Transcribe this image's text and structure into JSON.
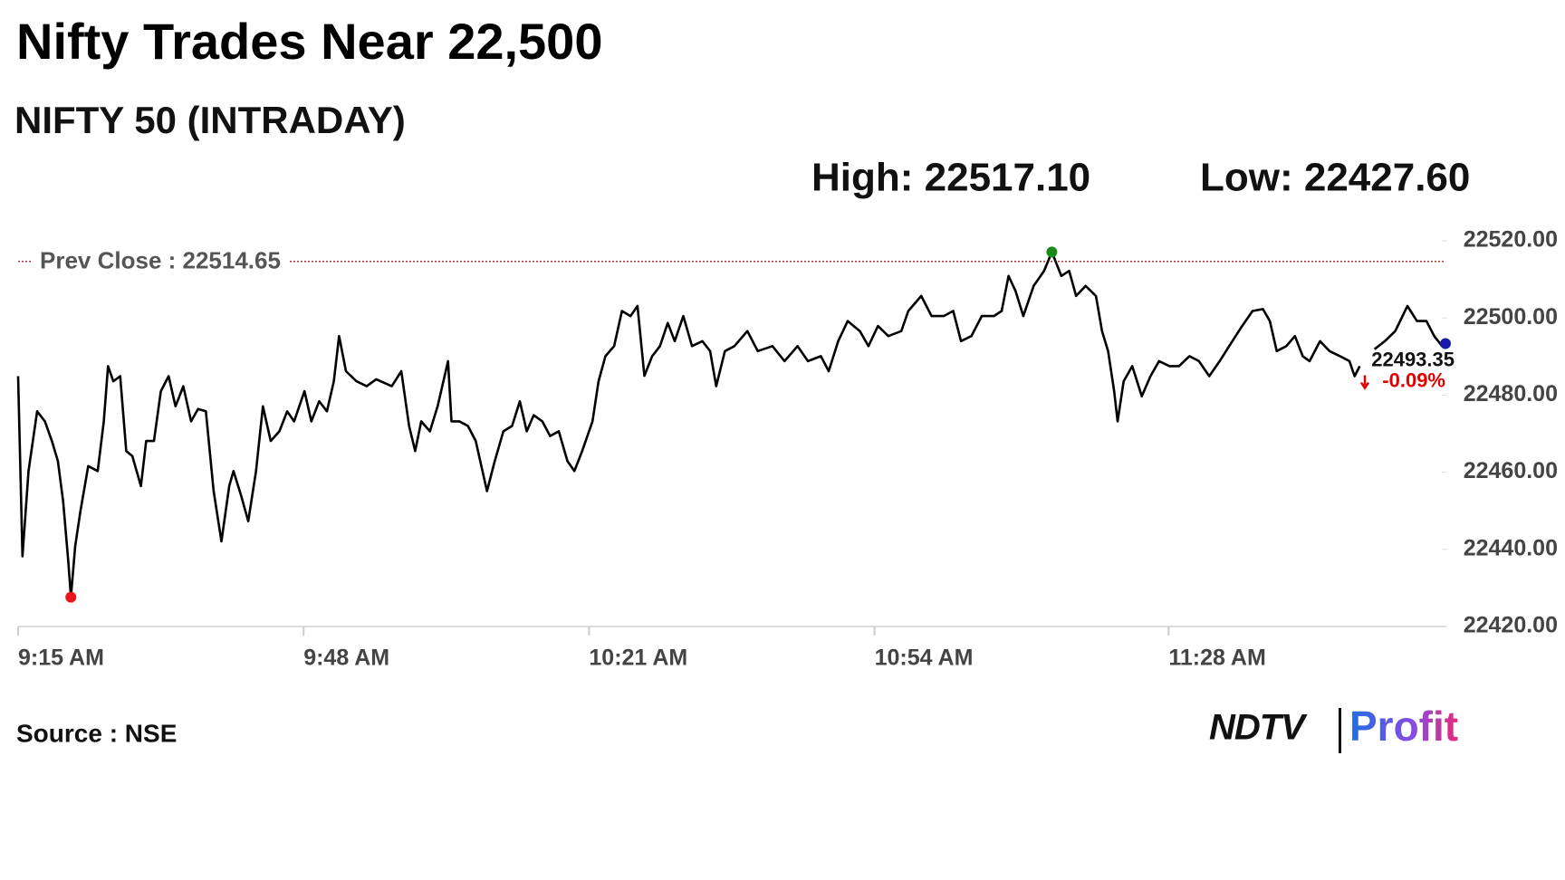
{
  "chart_data": {
    "type": "line",
    "title": "Nifty Trades Near 22,500",
    "subtitle": "NIFTY 50 (INTRADAY)",
    "high_label": "High: 22517.10",
    "low_label": "Low: 22427.60",
    "prev_close_label": "Prev Close : 22514.65",
    "prev_close": 22514.65,
    "last_price_label": "22493.35",
    "change_label": "-0.09%",
    "source": "Source : NSE",
    "logo": {
      "left": "NDTV",
      "right": "Profit"
    },
    "xlim": [
      0,
      165
    ],
    "xticks": [
      {
        "value": 0,
        "label": "9:15 AM"
      },
      {
        "value": 33,
        "label": "9:48 AM"
      },
      {
        "value": 66,
        "label": "10:21 AM"
      },
      {
        "value": 99,
        "label": "10:54 AM"
      },
      {
        "value": 133,
        "label": "11:28 AM"
      }
    ],
    "ylim": [
      22420,
      22520
    ],
    "yticks": [
      {
        "value": 22420,
        "label": "22420.00"
      },
      {
        "value": 22440,
        "label": "22440.00"
      },
      {
        "value": 22460,
        "label": "22460.00"
      },
      {
        "value": 22480,
        "label": "22480.00"
      },
      {
        "value": 22500,
        "label": "22500.00"
      },
      {
        "value": 22520,
        "label": "22520.00"
      }
    ],
    "x": [
      0,
      0.5,
      1.2,
      2.2,
      3.1,
      3.9,
      4.6,
      5.2,
      5.8,
      6.1,
      6.6,
      7.2,
      8.1,
      9.2,
      9.9,
      10.4,
      11.0,
      11.8,
      12.5,
      13.2,
      14.2,
      14.8,
      15.7,
      16.5,
      17.4,
      18.2,
      19.1,
      20.0,
      20.8,
      21.7,
      22.6,
      23.5,
      24.4,
      24.9,
      25.8,
      26.6,
      27.5,
      28.3,
      29.2,
      30.2,
      31.1,
      31.9,
      33.1,
      33.9,
      34.8,
      35.7,
      36.5,
      37.1,
      37.9,
      39.1,
      40.3,
      41.4,
      43.2,
      44.3,
      45.2,
      45.9,
      46.6,
      47.6,
      48.5,
      49.7,
      50.1,
      51.0,
      52.0,
      52.9,
      54.2,
      55.1,
      56.1,
      57.1,
      58.0,
      58.8,
      59.6,
      60.6,
      61.5,
      62.5,
      63.5,
      64.3,
      65.2,
      66.4,
      67.1,
      67.9,
      68.9,
      69.8,
      70.8,
      71.6,
      72.4,
      73.3,
      74.2,
      75.1,
      75.9,
      76.9,
      77.9,
      79.1,
      80.0,
      80.7,
      81.7,
      82.8,
      84.3,
      85.5,
      87.2,
      88.6,
      90.1,
      91.3,
      92.8,
      93.7,
      94.8,
      95.9,
      97.3,
      98.3,
      99.4,
      100.6,
      102.1,
      102.9,
      104.4,
      105.6,
      107.0,
      108.1,
      109.0,
      110.2,
      111.4,
      112.8,
      113.7,
      114.5,
      115.3,
      116.2,
      117.4,
      118.6,
      119.5,
      120.6,
      121.5,
      122.3,
      123.4,
      124.6,
      125.3,
      126.0,
      126.7,
      127.1,
      127.8,
      128.8,
      129.9,
      130.9,
      131.9,
      133.1,
      134.2,
      135.4,
      136.5,
      137.7,
      138.9,
      140.0,
      141.5,
      142.7,
      143.9,
      144.7,
      145.5,
      146.6,
      147.6,
      148.5,
      149.3,
      150.5,
      151.6,
      152.8,
      153.9,
      154.5,
      155.1,
      155.9,
      156.8,
      158.0,
      159.2,
      160.6,
      161.7,
      162.8,
      163.7,
      164.6,
      165.0
    ],
    "series": [
      {
        "name": "NIFTY 50",
        "color": "#000000",
        "values": [
          22484.9,
          22438.2,
          22460.3,
          22475.8,
          22473.2,
          22468.1,
          22462.9,
          22452.5,
          22436.9,
          22427.6,
          22440.8,
          22449.9,
          22461.6,
          22460.3,
          22473.2,
          22487.5,
          22483.6,
          22484.9,
          22465.5,
          22464.2,
          22456.4,
          22468.1,
          22468.1,
          22481.0,
          22484.9,
          22477.1,
          22482.3,
          22473.2,
          22476.4,
          22475.8,
          22455.1,
          22442.1,
          22456.4,
          22460.3,
          22453.8,
          22447.3,
          22460.3,
          22477.1,
          22468.1,
          22470.6,
          22475.8,
          22473.2,
          22481.0,
          22473.2,
          22478.4,
          22475.8,
          22483.6,
          22495.3,
          22486.2,
          22483.6,
          22482.3,
          22484.1,
          22482.3,
          22486.2,
          22472.0,
          22465.5,
          22473.2,
          22470.6,
          22477.1,
          22488.8,
          22473.2,
          22473.2,
          22472.0,
          22468.1,
          22455.1,
          22462.9,
          22470.6,
          22472.0,
          22478.4,
          22470.6,
          22474.8,
          22473.2,
          22469.4,
          22470.6,
          22462.9,
          22460.3,
          22465.5,
          22473.2,
          22483.6,
          22490.1,
          22492.7,
          22501.8,
          22500.5,
          22503.1,
          22485.0,
          22490.1,
          22492.7,
          22498.7,
          22494.0,
          22500.5,
          22492.7,
          22494.0,
          22491.4,
          22482.3,
          22491.4,
          22492.7,
          22496.6,
          22491.4,
          22492.7,
          22488.8,
          22492.7,
          22488.8,
          22490.1,
          22486.2,
          22494.0,
          22499.2,
          22496.6,
          22492.7,
          22497.9,
          22495.3,
          22496.6,
          22501.8,
          22505.7,
          22500.5,
          22500.5,
          22501.8,
          22494.0,
          22495.3,
          22500.5,
          22500.5,
          22501.8,
          22510.9,
          22507.0,
          22500.5,
          22508.3,
          22512.2,
          22517.1,
          22510.9,
          22512.2,
          22505.7,
          22508.3,
          22505.7,
          22496.6,
          22491.4,
          22481.0,
          22473.2,
          22483.6,
          22487.5,
          22479.7,
          22484.9,
          22488.8,
          22487.5,
          22487.5,
          22490.1,
          22488.8,
          22484.9,
          22488.8,
          22492.7,
          22497.9,
          22501.8,
          22502.3,
          22499.2,
          22491.4,
          22492.7,
          22495.3,
          22490.1,
          22488.8,
          22494.0,
          22491.4,
          22490.1,
          22488.8,
          22484.9,
          22487.5,
          null,
          22491.9,
          22494.0,
          22496.6,
          22503.1,
          22499.2,
          22499.2,
          22495.3,
          22492.7,
          22493.35
        ]
      }
    ],
    "high_color": "#1a8a1a",
    "low_color": "#e8141c",
    "last_color": "#1a1aa8",
    "prev_close_color": "#b22222",
    "change_color": "#e00000",
    "grid": false
  }
}
